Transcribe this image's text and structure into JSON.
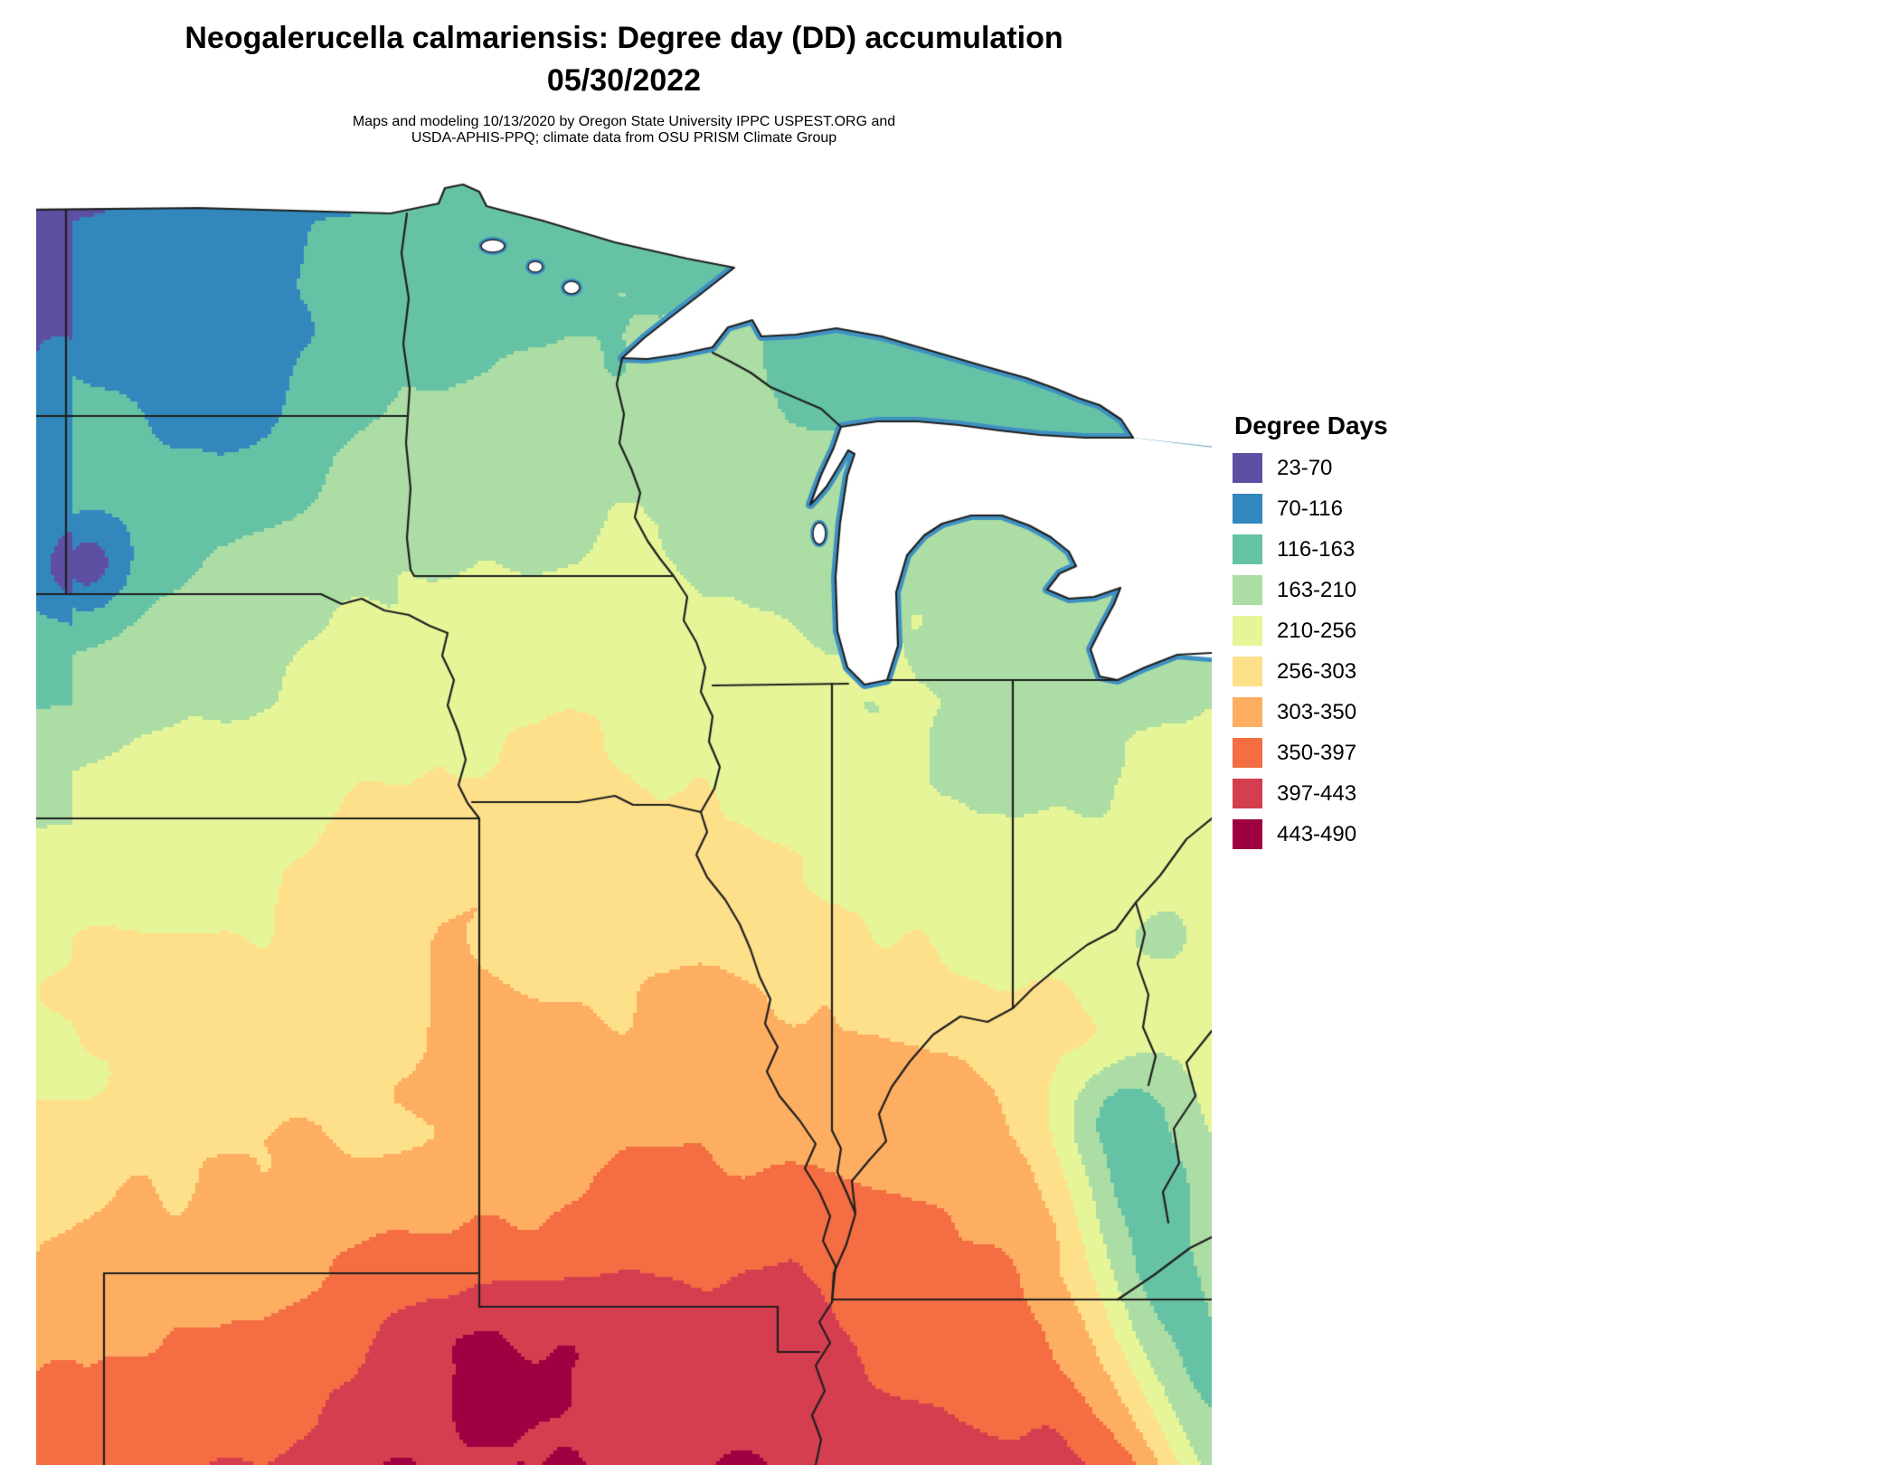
{
  "header": {
    "title": "Neogalerucella calmariensis: Degree day (DD) accumulation",
    "date": "05/30/2022",
    "caption_line1": "Maps and modeling 10/13/2020 by Oregon State University IPPC USPEST.ORG and",
    "caption_line2": "USDA-APHIS-PPQ; climate data from OSU PRISM Climate Group"
  },
  "legend": {
    "title": "Degree Days",
    "bins": [
      {
        "label": "23-70",
        "min": 23,
        "max": 70,
        "color": "#5E4FA2"
      },
      {
        "label": "70-116",
        "min": 70,
        "max": 116,
        "color": "#3288BD"
      },
      {
        "label": "116-163",
        "min": 116,
        "max": 163,
        "color": "#66C2A5"
      },
      {
        "label": "163-210",
        "min": 163,
        "max": 210,
        "color": "#ABDDA4"
      },
      {
        "label": "210-256",
        "min": 210,
        "max": 256,
        "color": "#E6F598"
      },
      {
        "label": "256-303",
        "min": 256,
        "max": 303,
        "color": "#FEE08B"
      },
      {
        "label": "303-350",
        "min": 303,
        "max": 350,
        "color": "#FDAE61"
      },
      {
        "label": "350-397",
        "min": 350,
        "max": 397,
        "color": "#F46D43"
      },
      {
        "label": "397-443",
        "min": 397,
        "max": 443,
        "color": "#D53E4F"
      },
      {
        "label": "443-490",
        "min": 443,
        "max": 490,
        "color": "#9E0142"
      }
    ]
  },
  "map": {
    "water_edge_color": "#3F90C2",
    "border_color": "#1F1F1F",
    "water_color": "#FFFFFF",
    "background": "#FFFFFF"
  }
}
